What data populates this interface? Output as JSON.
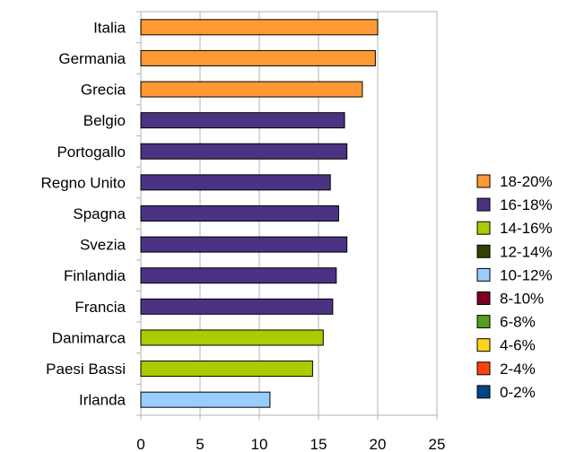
{
  "chart_data": {
    "type": "bar",
    "orientation": "horizontal",
    "categories": [
      "Italia",
      "Germania",
      "Grecia",
      "Belgio",
      "Portogallo",
      "Regno Unito",
      "Spagna",
      "Svezia",
      "Finlandia",
      "Francia",
      "Danimarca",
      "Paesi Bassi",
      "Irlanda"
    ],
    "values": [
      20.0,
      19.8,
      18.7,
      17.2,
      17.4,
      16.0,
      16.7,
      17.4,
      16.5,
      16.2,
      15.4,
      14.5,
      10.9
    ],
    "groups": [
      "18-20%",
      "18-20%",
      "18-20%",
      "16-18%",
      "16-18%",
      "16-18%",
      "16-18%",
      "16-18%",
      "16-18%",
      "16-18%",
      "14-16%",
      "14-16%",
      "10-12%"
    ],
    "xlim": [
      0,
      25
    ],
    "xticks": [
      0,
      5,
      10,
      15,
      20,
      25
    ],
    "grid": "vertical",
    "legend_position": "right",
    "legend": [
      {
        "label": "18-20%",
        "color": "#ff9933"
      },
      {
        "label": "16-18%",
        "color": "#4b3282"
      },
      {
        "label": "14-16%",
        "color": "#aacc00"
      },
      {
        "label": "12-14%",
        "color": "#314004"
      },
      {
        "label": "10-12%",
        "color": "#99ccff"
      },
      {
        "label": "8-10%",
        "color": "#7e0021"
      },
      {
        "label": "6-8%",
        "color": "#579d1c"
      },
      {
        "label": "4-6%",
        "color": "#ffd320"
      },
      {
        "label": "2-4%",
        "color": "#ff420e"
      },
      {
        "label": "0-2%",
        "color": "#004586"
      }
    ]
  }
}
